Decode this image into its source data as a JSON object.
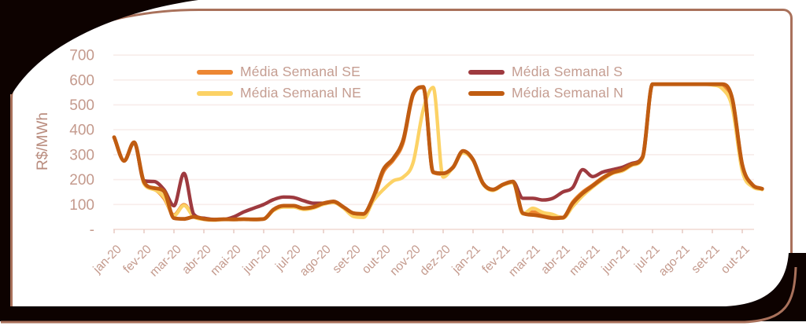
{
  "frame": {
    "border_color": "#A9715B",
    "corner_color": "#0D0200",
    "card_background": "#FFFFFF"
  },
  "axis_style": {
    "tick_text_color": "#C49A8D",
    "axis_title_color": "#B98C7E",
    "grid_color": "#F8EDEB",
    "baseline_color": "#F0D8D2",
    "tick_mark_color": "#E5C6BD"
  },
  "legend": {
    "items": [
      {
        "label": "Média Semanal SE",
        "color": "#ED8733"
      },
      {
        "label": "Média Semanal NE",
        "color": "#FCD265"
      },
      {
        "label": "Média Semanal S",
        "color": "#9E3A3F"
      },
      {
        "label": "Média Semanal N",
        "color": "#C05C11"
      }
    ]
  },
  "chart_data": {
    "type": "line",
    "title": "",
    "ylabel": "R$/MWh",
    "xlabel": "",
    "ylim": [
      0,
      700
    ],
    "grid": "horizontal",
    "legend_position": "top-inside",
    "samples_per_month": 3,
    "y_ticks": [
      {
        "label": "700",
        "value": 700
      },
      {
        "label": "600",
        "value": 600
      },
      {
        "label": "500",
        "value": 500
      },
      {
        "label": "400",
        "value": 400
      },
      {
        "label": "300",
        "value": 300
      },
      {
        "label": "200",
        "value": 200
      },
      {
        "label": "100",
        "value": 100
      },
      {
        "label": "-",
        "value": 0
      }
    ],
    "x_tick_labels": [
      "jan-20",
      "fev-20",
      "mar-20",
      "abr-20",
      "mai-20",
      "jun-20",
      "jul-20",
      "ago-20",
      "set-20",
      "out-20",
      "nov-20",
      "dez-20",
      "jan-21",
      "fev-21",
      "mar-21",
      "abr-21",
      "mai-21",
      "jun-21",
      "jul-21",
      "ago-21",
      "set-21",
      "out-21"
    ],
    "series": [
      {
        "name": "Média Semanal SE",
        "color": "#ED8733",
        "width": 4.4,
        "values": [
          370,
          275,
          350,
          185,
          162,
          125,
          58,
          99,
          52,
          41,
          38,
          40,
          40,
          41,
          40,
          42,
          78,
          92,
          92,
          82,
          88,
          103,
          110,
          88,
          60,
          57,
          120,
          230,
          278,
          350,
          540,
          570,
          228,
          222,
          248,
          312,
          278,
          183,
          158,
          179,
          190,
          63,
          70,
          62,
          55,
          48,
          110,
          150,
          178,
          208,
          230,
          242,
          264,
          288,
          583,
          583,
          583,
          583,
          583,
          583,
          582,
          575,
          508,
          248,
          176,
          161
        ]
      },
      {
        "name": "Média Semanal NE",
        "color": "#FCD265",
        "width": 4.4,
        "values": [
          370,
          275,
          350,
          183,
          160,
          130,
          55,
          96,
          50,
          40,
          37,
          39,
          39,
          40,
          39,
          41,
          76,
          90,
          90,
          80,
          86,
          101,
          108,
          86,
          52,
          48,
          115,
          160,
          195,
          210,
          270,
          480,
          570,
          210,
          250,
          308,
          276,
          182,
          156,
          178,
          188,
          62,
          85,
          68,
          60,
          45,
          92,
          135,
          170,
          200,
          225,
          235,
          258,
          285,
          583,
          583,
          583,
          583,
          583,
          583,
          580,
          565,
          490,
          235,
          172,
          160
        ]
      },
      {
        "name": "Média Semanal S",
        "color": "#9E3A3F",
        "width": 4.4,
        "values": [
          370,
          275,
          350,
          195,
          192,
          160,
          95,
          225,
          60,
          45,
          40,
          40,
          50,
          70,
          85,
          100,
          120,
          130,
          128,
          115,
          105,
          105,
          112,
          90,
          65,
          62,
          130,
          240,
          285,
          360,
          545,
          572,
          230,
          225,
          250,
          315,
          280,
          185,
          160,
          180,
          192,
          125,
          125,
          118,
          125,
          150,
          168,
          240,
          212,
          230,
          240,
          250,
          266,
          292,
          583,
          583,
          583,
          583,
          583,
          583,
          583,
          583,
          525,
          260,
          180,
          163
        ]
      },
      {
        "name": "Média Semanal N",
        "color": "#C05C11",
        "width": 4.8,
        "values": [
          370,
          275,
          350,
          190,
          166,
          153,
          45,
          42,
          50,
          42,
          39,
          41,
          40,
          41,
          40,
          42,
          80,
          95,
          95,
          85,
          90,
          105,
          112,
          90,
          65,
          62,
          130,
          240,
          285,
          360,
          545,
          572,
          230,
          225,
          250,
          315,
          280,
          185,
          160,
          180,
          192,
          65,
          58,
          52,
          45,
          47,
          105,
          145,
          175,
          205,
          228,
          240,
          262,
          290,
          583,
          583,
          583,
          583,
          583,
          583,
          583,
          583,
          525,
          260,
          180,
          163
        ]
      }
    ]
  }
}
